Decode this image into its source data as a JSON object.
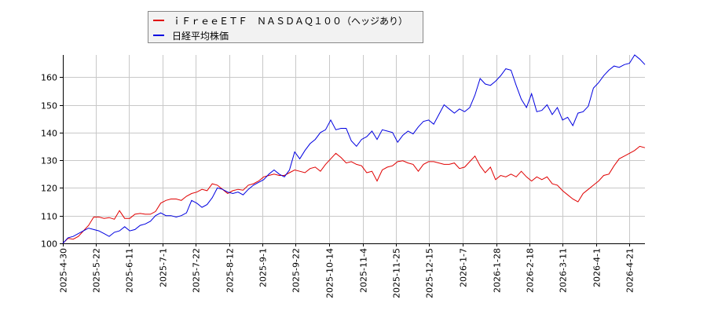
{
  "legend": {
    "items": [
      {
        "label": "ｉＦｒｅｅＥＴＦ　ＮＡＳＤＡＱ１００（ヘッジあり）",
        "color": "#e00000"
      },
      {
        "label": "日経平均株価",
        "color": "#0000e0"
      }
    ]
  },
  "chart_data": {
    "type": "line",
    "title": "",
    "xlabel": "",
    "ylabel": "",
    "ylim": [
      100,
      168
    ],
    "yticks": [
      100,
      110,
      120,
      130,
      140,
      150,
      160
    ],
    "grid": true,
    "legend_position": "top-left (outside plot)",
    "x_tick_labels": [
      "2025-4-30",
      "2025-5-22",
      "2025-6-11",
      "2025-7-1",
      "2025-7-22",
      "2025-8-12",
      "2025-9-1",
      "2025-9-22",
      "2025-10-14",
      "2025-11-4",
      "2025-11-25",
      "2025-12-15",
      "2026-1-7",
      "2026-1-28",
      "2026-2-18",
      "2026-3-11",
      "2026-4-1",
      "2026-4-21"
    ],
    "series": [
      {
        "name": "ｉＦｒｅｅＥＴＦ　ＮＡＳＤＡＱ１００（ヘッジあり）",
        "color": "#e00000",
        "values": [
          100.0,
          101.8,
          101.5,
          102.5,
          104.5,
          106.5,
          109.5,
          109.5,
          109.0,
          109.3,
          108.7,
          111.8,
          109.0,
          109.0,
          110.5,
          110.8,
          110.5,
          110.5,
          111.5,
          114.5,
          115.5,
          116.0,
          116.0,
          115.5,
          117.0,
          118.0,
          118.5,
          119.5,
          119.0,
          121.5,
          121.0,
          119.5,
          118.0,
          119.0,
          119.5,
          119.2,
          121.0,
          121.5,
          122.5,
          124.0,
          124.5,
          125.0,
          124.5,
          124.5,
          125.5,
          126.5,
          126.0,
          125.5,
          127.0,
          127.5,
          126.0,
          128.5,
          130.5,
          132.5,
          131.0,
          129.0,
          129.5,
          128.5,
          128.0,
          125.5,
          126.0,
          122.5,
          126.5,
          127.5,
          128.0,
          129.5,
          129.8,
          129.0,
          128.5,
          126.0,
          128.5,
          129.5,
          129.5,
          129.0,
          128.5,
          128.5,
          129.0,
          127.0,
          127.5,
          129.5,
          131.5,
          128.0,
          125.5,
          127.5,
          123.0,
          124.5,
          124.0,
          125.0,
          124.0,
          126.0,
          124.0,
          122.5,
          124.0,
          123.0,
          124.0,
          121.5,
          121.0,
          119.0,
          117.5,
          116.0,
          115.0,
          118.0,
          119.5,
          121.0,
          122.5,
          124.5,
          125.0,
          128.0,
          130.5,
          131.5,
          132.5,
          133.5,
          135.0,
          134.5
        ]
      },
      {
        "name": "日経平均株価",
        "color": "#0000e0",
        "values": [
          100.0,
          102.0,
          102.5,
          103.5,
          104.5,
          105.5,
          105.0,
          104.5,
          103.5,
          102.5,
          104.0,
          104.5,
          106.0,
          104.5,
          105.0,
          106.5,
          107.0,
          108.0,
          110.0,
          111.0,
          110.0,
          110.0,
          109.5,
          110.0,
          111.0,
          115.5,
          114.5,
          113.0,
          114.0,
          116.5,
          120.0,
          119.5,
          118.5,
          118.0,
          118.5,
          117.5,
          119.5,
          121.0,
          122.0,
          123.0,
          125.0,
          126.5,
          125.0,
          124.0,
          126.5,
          133.0,
          130.5,
          133.5,
          136.0,
          137.5,
          140.0,
          141.0,
          144.5,
          141.0,
          141.5,
          141.5,
          137.0,
          135.0,
          137.5,
          138.5,
          140.5,
          137.5,
          141.0,
          140.5,
          140.0,
          136.5,
          139.0,
          140.5,
          139.5,
          142.0,
          144.0,
          144.5,
          143.0,
          146.5,
          150.0,
          148.5,
          147.0,
          148.5,
          147.5,
          149.0,
          153.5,
          159.5,
          157.5,
          157.0,
          158.5,
          160.5,
          163.0,
          162.5,
          157.0,
          152.0,
          149.0,
          154.0,
          147.5,
          148.0,
          150.0,
          146.5,
          149.0,
          144.5,
          145.5,
          142.5,
          147.0,
          147.5,
          149.5,
          156.0,
          158.0,
          160.5,
          162.5,
          164.0,
          163.5,
          164.5,
          165.0,
          168.0,
          166.5,
          164.5
        ]
      }
    ]
  }
}
